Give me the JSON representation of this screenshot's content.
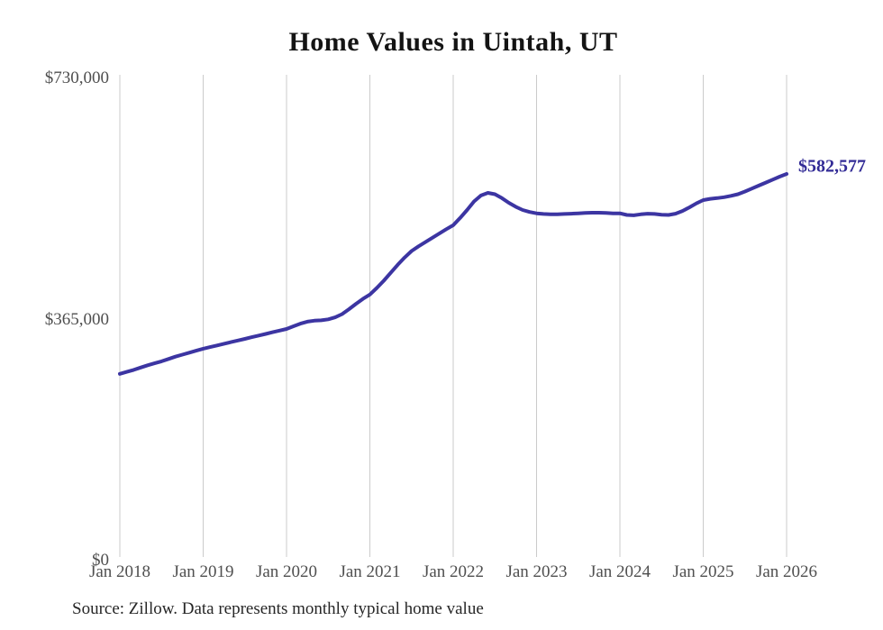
{
  "title": "Home Values in Uintah, UT",
  "end_label": "$582,577",
  "source_note": "Source: Zillow. Data represents monthly typical home value",
  "colors": {
    "background": "#ffffff",
    "line": "#3c35a2",
    "end_label_text": "#322b96",
    "gridline": "#cbcbcb",
    "axis_text": "#4f4f4f",
    "title_text": "#141414",
    "source_text": "#262626"
  },
  "chart_data": {
    "type": "line",
    "title": "Home Values in Uintah, UT",
    "xlabel": "",
    "ylabel": "",
    "x_tick_labels": [
      "Jan 2018",
      "Jan 2019",
      "Jan 2020",
      "Jan 2021",
      "Jan 2022",
      "Jan 2023",
      "Jan 2024",
      "Jan 2025",
      "Jan 2026"
    ],
    "y_tick_labels": [
      "$0",
      "$365,000",
      "$730,000"
    ],
    "y_ticks": [
      0,
      365000,
      730000
    ],
    "ylim": [
      0,
      730000
    ],
    "grid": "vertical-only",
    "legend": "none",
    "frequency": "monthly",
    "start_month": "Jan 2018",
    "end_month": "Jan 2026",
    "latest_value": 582577,
    "series": [
      {
        "name": "Typical home value",
        "values": [
          280000,
          283000,
          286000,
          289500,
          293000,
          296000,
          299000,
          302500,
          306000,
          309000,
          312000,
          315000,
          318000,
          320500,
          323000,
          325500,
          328000,
          330500,
          333000,
          335500,
          338000,
          340500,
          343000,
          345500,
          348000,
          352000,
          356000,
          359000,
          360500,
          361000,
          362500,
          365500,
          370500,
          378000,
          386000,
          393500,
          400000,
          410000,
          421000,
          433000,
          445000,
          456000,
          466000,
          473000,
          479500,
          486000,
          492500,
          499000,
          505000,
          516000,
          528000,
          541000,
          550000,
          554000,
          552000,
          546000,
          539000,
          533000,
          528000,
          525000,
          523000,
          522000,
          521500,
          521500,
          522000,
          522500,
          523000,
          523500,
          524000,
          524000,
          523500,
          523000,
          523000,
          520500,
          520000,
          521500,
          522500,
          522000,
          521000,
          520500,
          522500,
          526500,
          532000,
          538000,
          543000,
          545000,
          546000,
          547500,
          549500,
          552000,
          556000,
          560500,
          565000,
          569500,
          574000,
          578500,
          582577
        ]
      }
    ]
  }
}
